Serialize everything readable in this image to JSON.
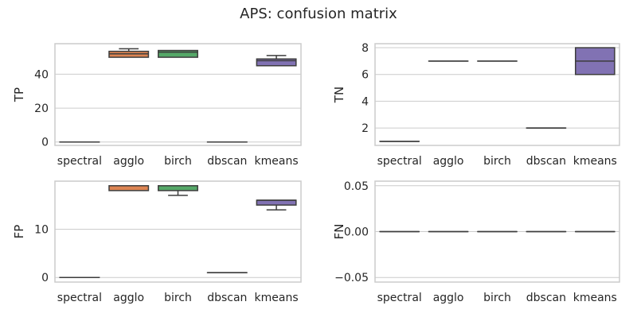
{
  "title": "APS: confusion matrix",
  "colors": {
    "spectral": "#4c72b0",
    "agglo": "#dd8452",
    "birch": "#55a868",
    "dbscan": "#c44e52",
    "kmeans": "#8172b3",
    "grid": "#cccccc",
    "frame": "#cccccc",
    "line": "#3d3d3d"
  },
  "chart_data": [
    {
      "type": "box",
      "ylabel": "TP",
      "categories": [
        "spectral",
        "agglo",
        "birch",
        "dbscan",
        "kmeans"
      ],
      "yticks": [
        0,
        20,
        40
      ],
      "ylim": [
        -2,
        58
      ],
      "boxes": [
        {
          "whislo": 0,
          "q1": 0,
          "med": 0,
          "q3": 0,
          "whishi": 0
        },
        {
          "whislo": 50,
          "q1": 50,
          "med": 52,
          "q3": 53.5,
          "whishi": 55
        },
        {
          "whislo": 50,
          "q1": 50,
          "med": 53,
          "q3": 54,
          "whishi": 54
        },
        {
          "whislo": 0,
          "q1": 0,
          "med": 0,
          "q3": 0,
          "whishi": 0
        },
        {
          "whislo": 45,
          "q1": 45,
          "med": 48,
          "q3": 49,
          "whishi": 51
        }
      ]
    },
    {
      "type": "box",
      "ylabel": "TN",
      "categories": [
        "spectral",
        "agglo",
        "birch",
        "dbscan",
        "kmeans"
      ],
      "yticks": [
        2,
        4,
        6,
        8
      ],
      "ylim": [
        0.7,
        8.3
      ],
      "boxes": [
        {
          "whislo": 1,
          "q1": 1,
          "med": 1,
          "q3": 1,
          "whishi": 1
        },
        {
          "whislo": 7,
          "q1": 7,
          "med": 7,
          "q3": 7,
          "whishi": 7
        },
        {
          "whislo": 7,
          "q1": 7,
          "med": 7,
          "q3": 7,
          "whishi": 7
        },
        {
          "whislo": 2,
          "q1": 2,
          "med": 2,
          "q3": 2,
          "whishi": 2
        },
        {
          "whislo": 6,
          "q1": 6,
          "med": 7,
          "q3": 8,
          "whishi": 8
        }
      ]
    },
    {
      "type": "box",
      "ylabel": "FP",
      "categories": [
        "spectral",
        "agglo",
        "birch",
        "dbscan",
        "kmeans"
      ],
      "yticks": [
        0,
        10
      ],
      "ylim": [
        -0.95,
        19.95
      ],
      "boxes": [
        {
          "whislo": 0,
          "q1": 0,
          "med": 0,
          "q3": 0,
          "whishi": 0
        },
        {
          "whislo": 18,
          "q1": 18,
          "med": 19,
          "q3": 19,
          "whishi": 19
        },
        {
          "whislo": 17,
          "q1": 18,
          "med": 19,
          "q3": 19,
          "whishi": 19
        },
        {
          "whislo": 1,
          "q1": 1,
          "med": 1,
          "q3": 1,
          "whishi": 1
        },
        {
          "whislo": 14,
          "q1": 15,
          "med": 16,
          "q3": 16,
          "whishi": 16
        }
      ]
    },
    {
      "type": "box",
      "ylabel": "FN",
      "categories": [
        "spectral",
        "agglo",
        "birch",
        "dbscan",
        "kmeans"
      ],
      "yticks": [
        -0.05,
        0,
        0.05
      ],
      "yticklabels": [
        "−0.05",
        "0.00",
        "0.05"
      ],
      "ylim": [
        -0.055,
        0.055
      ],
      "boxes": [
        {
          "whislo": 0,
          "q1": 0,
          "med": 0,
          "q3": 0,
          "whishi": 0
        },
        {
          "whislo": 0,
          "q1": 0,
          "med": 0,
          "q3": 0,
          "whishi": 0
        },
        {
          "whislo": 0,
          "q1": 0,
          "med": 0,
          "q3": 0,
          "whishi": 0
        },
        {
          "whislo": 0,
          "q1": 0,
          "med": 0,
          "q3": 0,
          "whishi": 0
        },
        {
          "whislo": 0,
          "q1": 0,
          "med": 0,
          "q3": 0,
          "whishi": 0
        }
      ]
    }
  ]
}
